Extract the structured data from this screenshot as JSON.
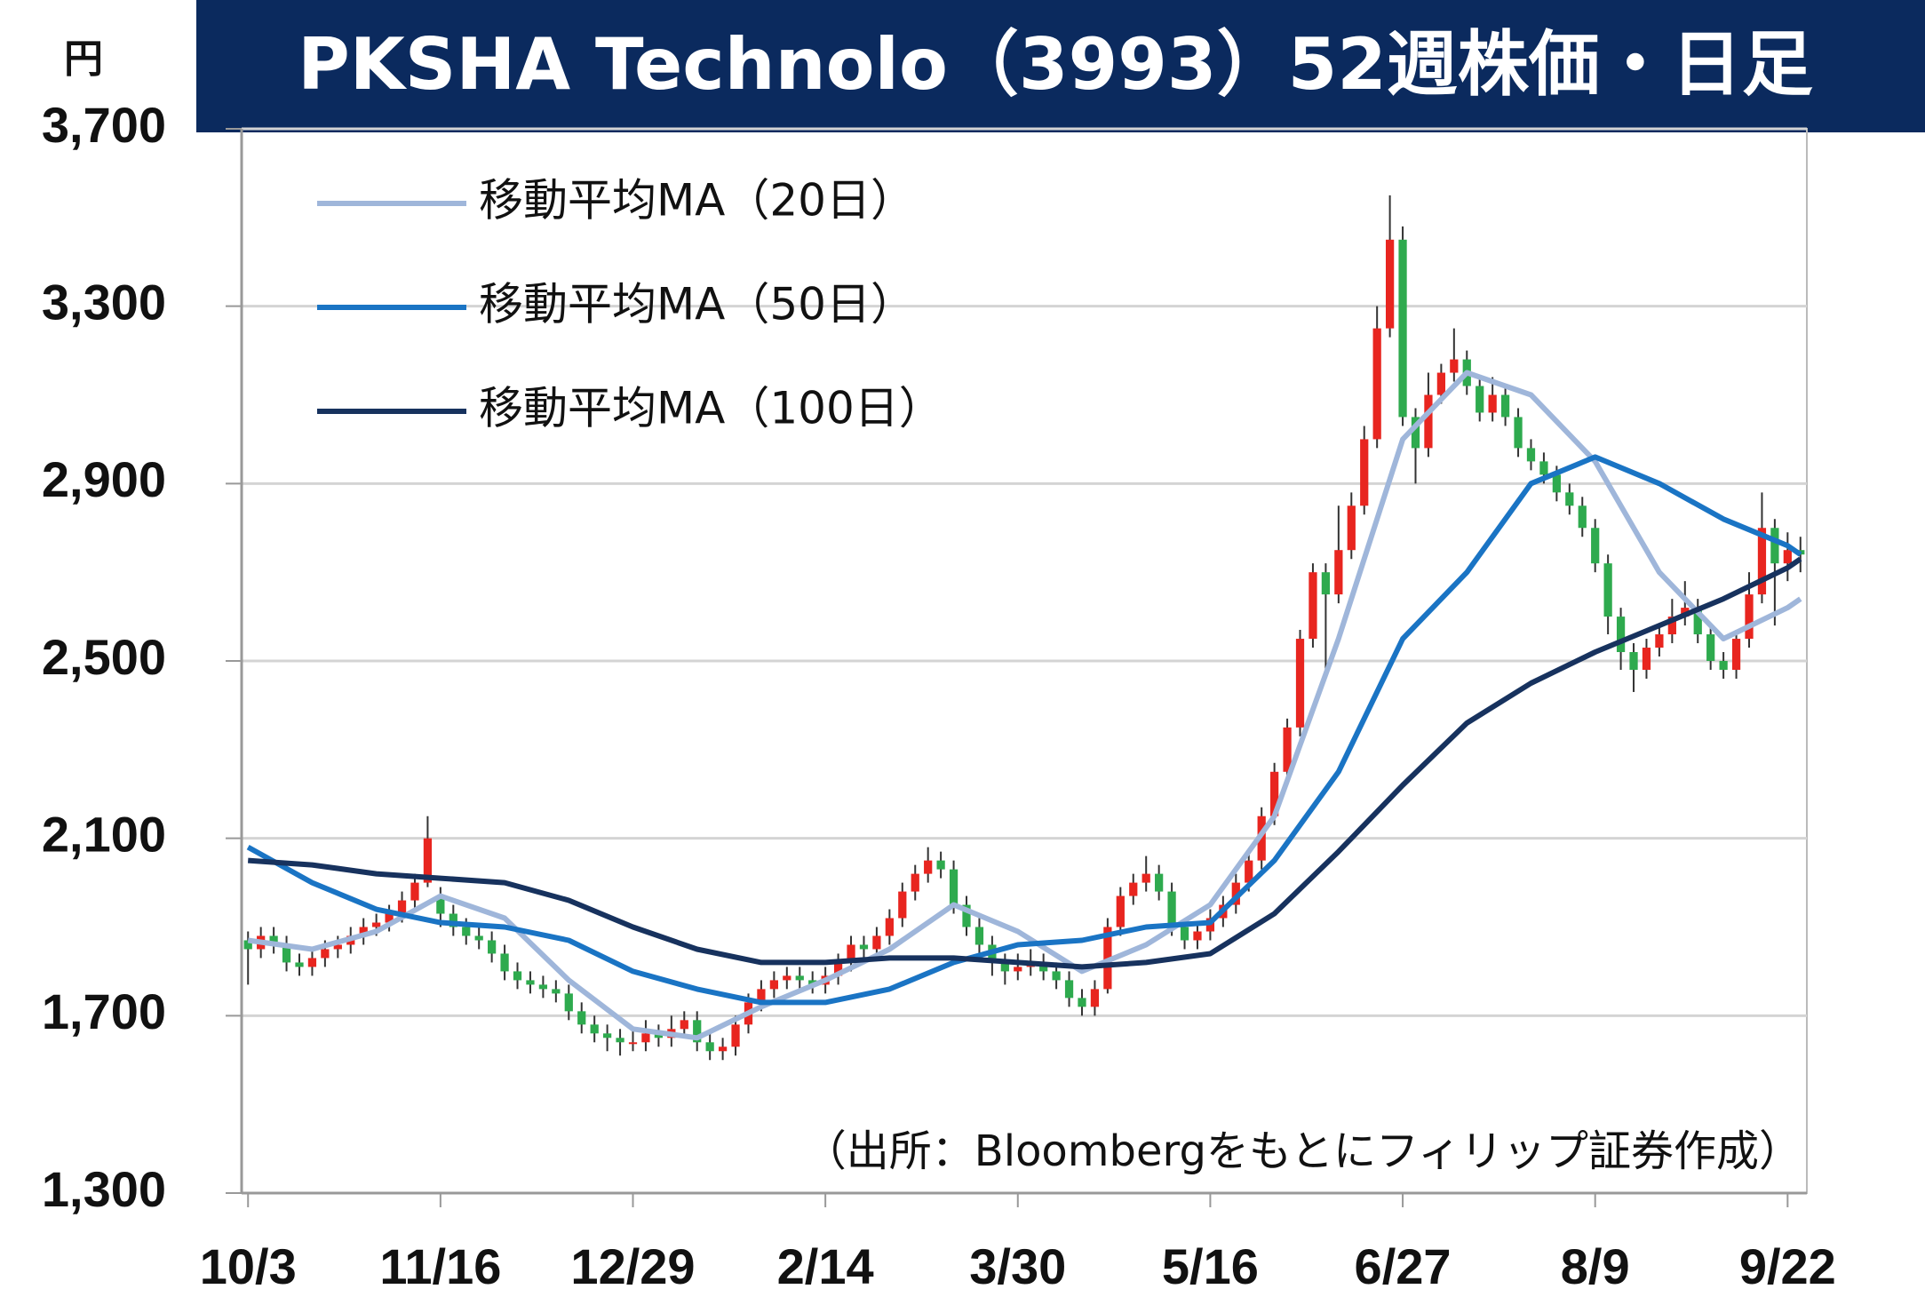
{
  "chart_data": {
    "type": "candlestick",
    "title": "PKSHA Technolo（3993）52週株価・日足",
    "unit_label": "円",
    "source_note": "（出所：Bloombergをもとにフィリップ証券作成）",
    "categories": [
      "10/3",
      null,
      null,
      null,
      null,
      null,
      null,
      null,
      null,
      null,
      null,
      null,
      null,
      null,
      null,
      "11/16",
      null,
      null,
      null,
      null,
      null,
      null,
      null,
      null,
      null,
      null,
      null,
      null,
      null,
      null,
      "12/29",
      null,
      null,
      null,
      null,
      null,
      null,
      null,
      null,
      null,
      null,
      null,
      null,
      null,
      null,
      "2/14",
      null,
      null,
      null,
      null,
      null,
      null,
      null,
      null,
      null,
      null,
      null,
      null,
      null,
      null,
      "3/30",
      null,
      null,
      null,
      null,
      null,
      null,
      null,
      null,
      null,
      null,
      null,
      null,
      null,
      null,
      "5/16",
      null,
      null,
      null,
      null,
      null,
      null,
      null,
      null,
      null,
      null,
      null,
      null,
      null,
      null,
      "6/27",
      null,
      null,
      null,
      null,
      null,
      null,
      null,
      null,
      null,
      null,
      null,
      null,
      null,
      null,
      "8/9",
      null,
      null,
      null,
      null,
      null,
      null,
      null,
      null,
      null,
      null,
      null,
      null,
      null,
      null,
      "9/22",
      null
    ],
    "open": [
      1870,
      1850,
      1880,
      1860,
      1820,
      1810,
      1830,
      1850,
      1860,
      1880,
      1900,
      1910,
      1930,
      1960,
      2000,
      1970,
      1930,
      1900,
      1880,
      1870,
      1840,
      1800,
      1780,
      1770,
      1760,
      1750,
      1710,
      1680,
      1660,
      1650,
      1640,
      1640,
      1660,
      1650,
      1670,
      1690,
      1640,
      1620,
      1630,
      1680,
      1730,
      1760,
      1780,
      1790,
      1780,
      1770,
      1790,
      1820,
      1860,
      1850,
      1880,
      1920,
      1980,
      2020,
      2050,
      2030,
      1950,
      1900,
      1860,
      1820,
      1800,
      1810,
      1820,
      1800,
      1780,
      1740,
      1720,
      1760,
      1900,
      1970,
      2000,
      2020,
      1980,
      1900,
      1870,
      1890,
      1920,
      1950,
      2000,
      2050,
      2150,
      2250,
      2350,
      2550,
      2700,
      2650,
      2750,
      2850,
      3000,
      3250,
      3450,
      3050,
      2980,
      3100,
      3150,
      3180,
      3120,
      3060,
      3100,
      3050,
      2980,
      2950,
      2920,
      2880,
      2850,
      2800,
      2720,
      2600,
      2520,
      2480,
      2530,
      2560,
      2600,
      2620,
      2560,
      2500,
      2480,
      2550,
      2650,
      2800,
      2720,
      2750
    ],
    "high": [
      1890,
      1900,
      1900,
      1880,
      1840,
      1850,
      1870,
      1880,
      1900,
      1920,
      1930,
      1950,
      1980,
      2020,
      2150,
      1990,
      1950,
      1920,
      1900,
      1890,
      1860,
      1820,
      1800,
      1790,
      1780,
      1770,
      1730,
      1700,
      1680,
      1670,
      1670,
      1690,
      1680,
      1700,
      1710,
      1710,
      1660,
      1650,
      1700,
      1750,
      1780,
      1800,
      1810,
      1810,
      1800,
      1810,
      1840,
      1880,
      1880,
      1900,
      1940,
      2000,
      2040,
      2080,
      2070,
      2050,
      1970,
      1920,
      1880,
      1840,
      1840,
      1850,
      1840,
      1820,
      1800,
      1760,
      1780,
      1920,
      1990,
      2020,
      2060,
      2040,
      2000,
      1920,
      1910,
      1940,
      1970,
      2020,
      2070,
      2170,
      2270,
      2370,
      2570,
      2720,
      2720,
      2850,
      2880,
      3030,
      3300,
      3550,
      3480,
      3070,
      3150,
      3170,
      3250,
      3200,
      3140,
      3140,
      3120,
      3070,
      3000,
      2970,
      2940,
      2900,
      2870,
      2820,
      2740,
      2620,
      2540,
      2550,
      2580,
      2640,
      2680,
      2640,
      2580,
      2520,
      2570,
      2700,
      2880,
      2820,
      2790,
      2780
    ],
    "low": [
      1770,
      1830,
      1840,
      1800,
      1790,
      1790,
      1810,
      1830,
      1840,
      1860,
      1880,
      1890,
      1910,
      1940,
      1990,
      1900,
      1880,
      1860,
      1850,
      1820,
      1780,
      1760,
      1750,
      1740,
      1730,
      1690,
      1660,
      1640,
      1620,
      1610,
      1620,
      1620,
      1630,
      1630,
      1650,
      1620,
      1600,
      1600,
      1610,
      1660,
      1710,
      1740,
      1760,
      1760,
      1750,
      1750,
      1770,
      1800,
      1830,
      1830,
      1860,
      1900,
      1960,
      2000,
      2010,
      1930,
      1880,
      1840,
      1790,
      1770,
      1780,
      1790,
      1780,
      1760,
      1720,
      1700,
      1700,
      1750,
      1880,
      1950,
      1980,
      1960,
      1880,
      1850,
      1850,
      1870,
      1900,
      1930,
      1980,
      2030,
      2130,
      2230,
      2330,
      2530,
      2480,
      2630,
      2730,
      2830,
      2980,
      3230,
      3030,
      2900,
      2960,
      3080,
      3130,
      3100,
      3040,
      3040,
      3030,
      2960,
      2930,
      2900,
      2860,
      2830,
      2780,
      2700,
      2560,
      2480,
      2430,
      2460,
      2510,
      2540,
      2580,
      2540,
      2480,
      2460,
      2460,
      2530,
      2630,
      2580,
      2680,
      2700
    ],
    "close": [
      1850,
      1880,
      1860,
      1820,
      1810,
      1830,
      1850,
      1860,
      1880,
      1900,
      1910,
      1930,
      1960,
      2000,
      2100,
      1930,
      1900,
      1880,
      1870,
      1840,
      1800,
      1780,
      1770,
      1760,
      1750,
      1710,
      1680,
      1660,
      1650,
      1640,
      1640,
      1660,
      1650,
      1670,
      1690,
      1640,
      1620,
      1630,
      1680,
      1730,
      1760,
      1780,
      1790,
      1780,
      1770,
      1790,
      1820,
      1860,
      1850,
      1880,
      1920,
      1980,
      2020,
      2050,
      2030,
      1950,
      1900,
      1860,
      1820,
      1800,
      1810,
      1820,
      1800,
      1780,
      1740,
      1720,
      1760,
      1900,
      1970,
      2000,
      2020,
      1980,
      1900,
      1870,
      1890,
      1920,
      1950,
      2000,
      2050,
      2150,
      2250,
      2350,
      2550,
      2700,
      2650,
      2750,
      2850,
      3000,
      3250,
      3450,
      3050,
      2980,
      3100,
      3150,
      3180,
      3120,
      3060,
      3100,
      3050,
      2980,
      2950,
      2920,
      2880,
      2850,
      2800,
      2720,
      2600,
      2520,
      2480,
      2530,
      2560,
      2600,
      2620,
      2560,
      2500,
      2480,
      2550,
      2650,
      2800,
      2720,
      2750,
      2740
    ],
    "up_color": "#e8251f",
    "down_color": "#2eaa4e",
    "series": [
      {
        "name": "移動平均MA（20日）",
        "color": "#9fb6da",
        "x": [
          0,
          5,
          10,
          15,
          20,
          25,
          30,
          35,
          40,
          45,
          50,
          55,
          60,
          65,
          70,
          75,
          80,
          85,
          90,
          95,
          100,
          105,
          110,
          115,
          120,
          121
        ],
        "values": [
          1870,
          1850,
          1890,
          1970,
          1920,
          1780,
          1670,
          1650,
          1720,
          1780,
          1850,
          1950,
          1890,
          1800,
          1860,
          1950,
          2150,
          2550,
          3000,
          3150,
          3100,
          2950,
          2700,
          2550,
          2620,
          2640
        ]
      },
      {
        "name": "移動平均MA（50日）",
        "color": "#1a74c4",
        "x": [
          0,
          5,
          10,
          15,
          20,
          25,
          30,
          35,
          40,
          45,
          50,
          55,
          60,
          65,
          70,
          75,
          80,
          85,
          90,
          95,
          100,
          105,
          110,
          115,
          120,
          121
        ],
        "values": [
          2080,
          2000,
          1940,
          1910,
          1900,
          1870,
          1800,
          1760,
          1730,
          1730,
          1760,
          1820,
          1860,
          1870,
          1900,
          1910,
          2050,
          2250,
          2550,
          2700,
          2900,
          2960,
          2900,
          2820,
          2760,
          2740
        ]
      },
      {
        "name": "移動平均MA（100日）",
        "color": "#17325e",
        "x": [
          0,
          5,
          10,
          15,
          20,
          25,
          30,
          35,
          40,
          45,
          50,
          55,
          60,
          65,
          70,
          75,
          80,
          85,
          90,
          95,
          100,
          105,
          110,
          115,
          120,
          121
        ],
        "values": [
          2050,
          2040,
          2020,
          2010,
          2000,
          1960,
          1900,
          1850,
          1820,
          1820,
          1830,
          1830,
          1820,
          1810,
          1820,
          1840,
          1930,
          2070,
          2220,
          2360,
          2450,
          2520,
          2580,
          2640,
          2710,
          2730
        ]
      }
    ],
    "ylim": [
      1300,
      3700
    ],
    "yticks": [
      {
        "value": 1300,
        "label": "1,300"
      },
      {
        "value": 1700,
        "label": "1,700"
      },
      {
        "value": 2100,
        "label": "2,100"
      },
      {
        "value": 2500,
        "label": "2,500"
      },
      {
        "value": 2900,
        "label": "2,900"
      },
      {
        "value": 3300,
        "label": "3,300"
      },
      {
        "value": 3700,
        "label": "3,700"
      }
    ],
    "grid": true,
    "legend": "upper left"
  }
}
